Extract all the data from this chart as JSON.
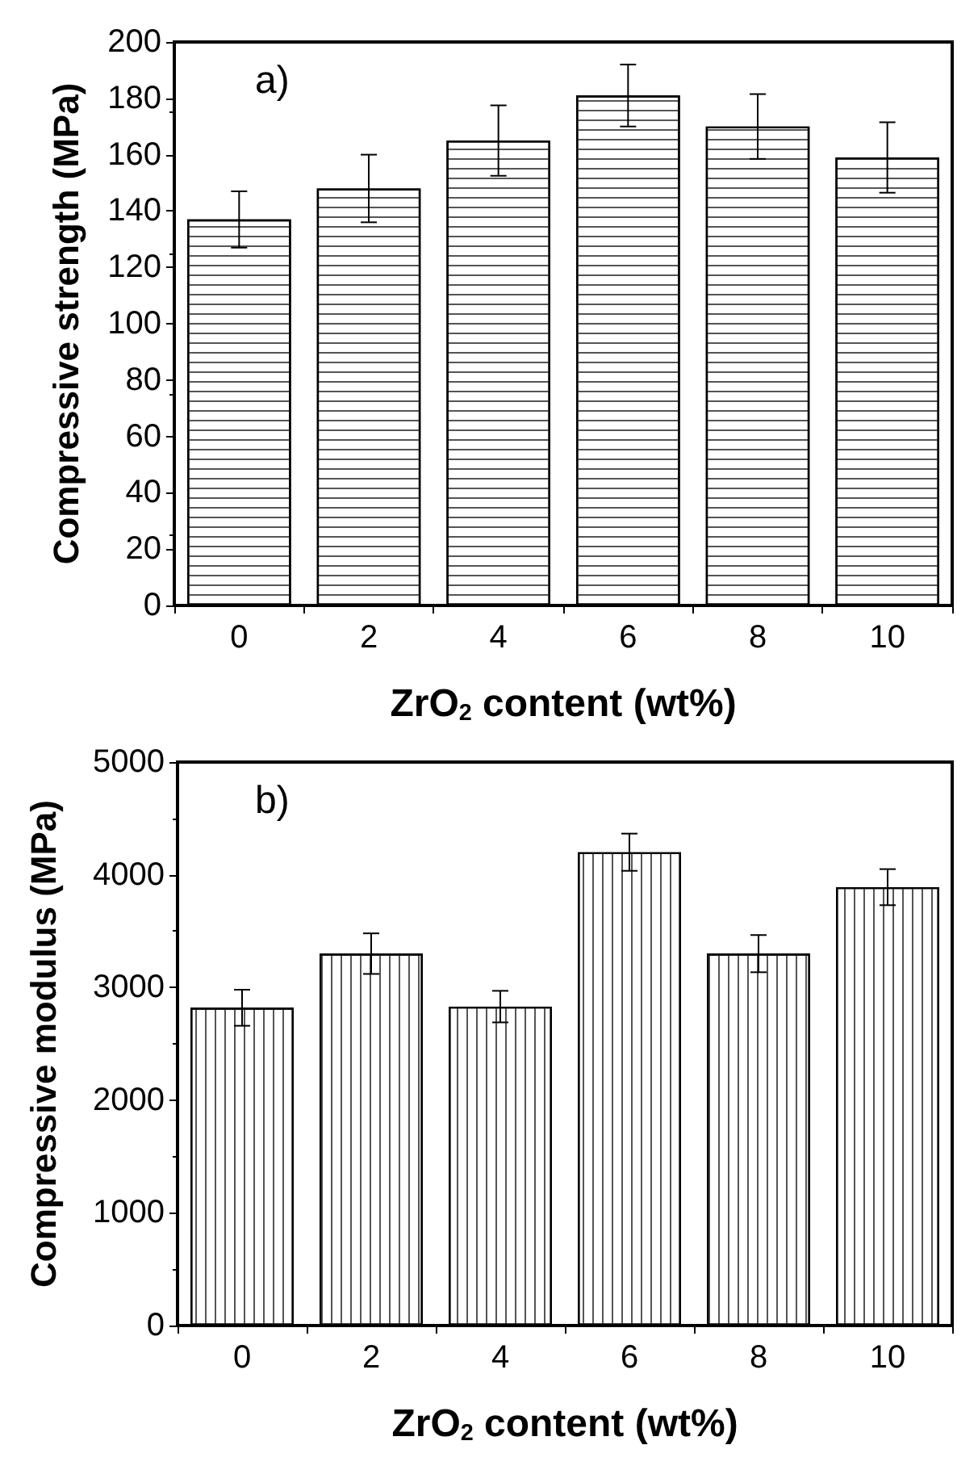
{
  "chart_data": [
    {
      "type": "bar",
      "xlabel": "ZrO$_{2}$ content (wt%)",
      "ylabel": "Compressive strength (MPa)",
      "annotations": [
        "a)"
      ],
      "categories": [
        "0",
        "2",
        "4",
        "6",
        "8",
        "10"
      ],
      "color": "#ffffff",
      "values": [
        137,
        148,
        165,
        181,
        170,
        159
      ],
      "errors": [
        10,
        12,
        12.5,
        11,
        11.5,
        12.5
      ],
      "ylim": [
        0,
        200
      ],
      "yticks": [
        0,
        20,
        40,
        60,
        80,
        100,
        120,
        140,
        160,
        180,
        200
      ]
    },
    {
      "type": "bar",
      "xlabel": "ZrO$_{2}$ content (wt%)",
      "ylabel": "Compressive modulus (MPa)",
      "annotations": [
        "b)"
      ],
      "categories": [
        "0",
        "2",
        "4",
        "6",
        "8",
        "10"
      ],
      "color": "#ffffff",
      "values": [
        2820,
        3300,
        2830,
        4200,
        3300,
        3890
      ],
      "errors": [
        160,
        180,
        140,
        165,
        165,
        160
      ],
      "ylim": [
        0,
        5000
      ],
      "yticks": [
        0,
        1000,
        2000,
        3000,
        4000,
        5000
      ]
    }
  ]
}
